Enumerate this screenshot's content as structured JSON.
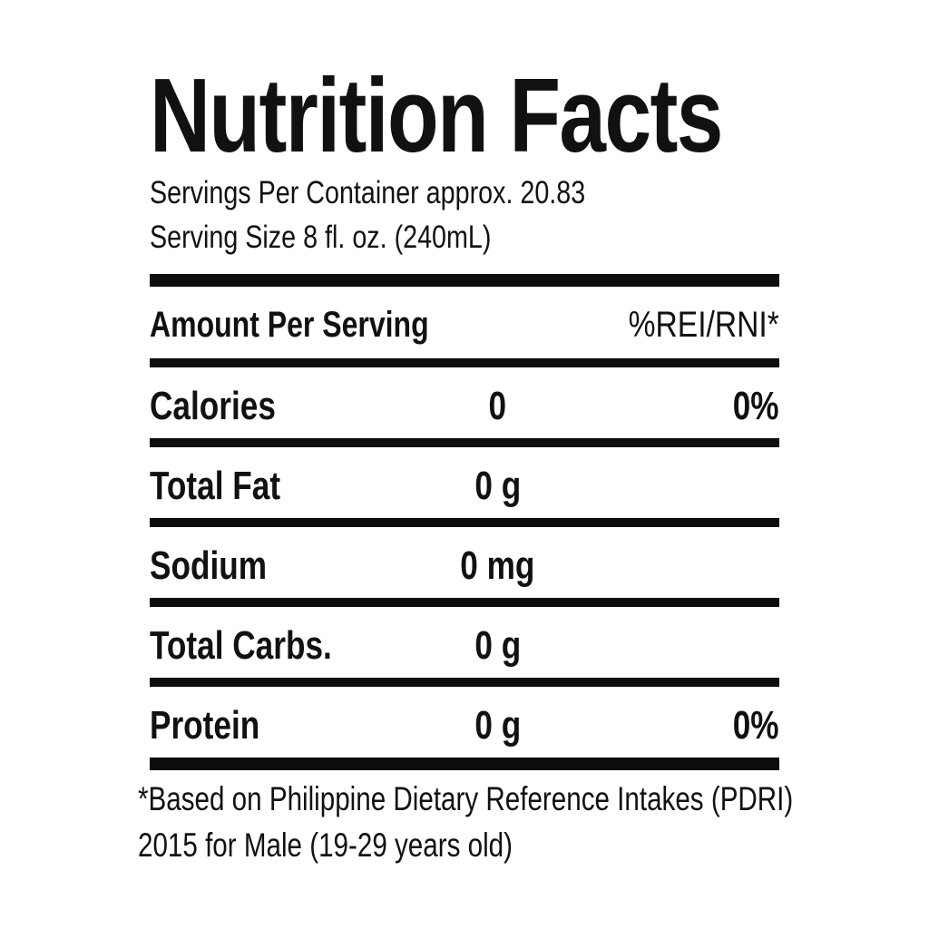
{
  "label": {
    "title": "Nutrition Facts",
    "servings_per_container": "Servings Per Container approx. 20.83",
    "serving_size": "Serving Size 8 fl. oz. (240mL)",
    "table": {
      "header_left": "Amount Per Serving",
      "header_right": "%REI/RNI*",
      "rows": [
        {
          "label": "Calories",
          "amount": "0",
          "pct": "0%"
        },
        {
          "label": "Total Fat",
          "amount": "0 g",
          "pct": ""
        },
        {
          "label": "Sodium",
          "amount": "0 mg",
          "pct": ""
        },
        {
          "label": "Total Carbs.",
          "amount": "0 g",
          "pct": ""
        },
        {
          "label": "Protein",
          "amount": "0 g",
          "pct": "0%"
        }
      ]
    },
    "footnote_lines": [
      "*Based on Philippine Dietary Reference Intakes (PDRI)",
      "2015 for Male (19-29 years old)"
    ],
    "colors": {
      "text": "#111111",
      "bar": "#0d0d0d",
      "background": "#ffffff"
    }
  }
}
